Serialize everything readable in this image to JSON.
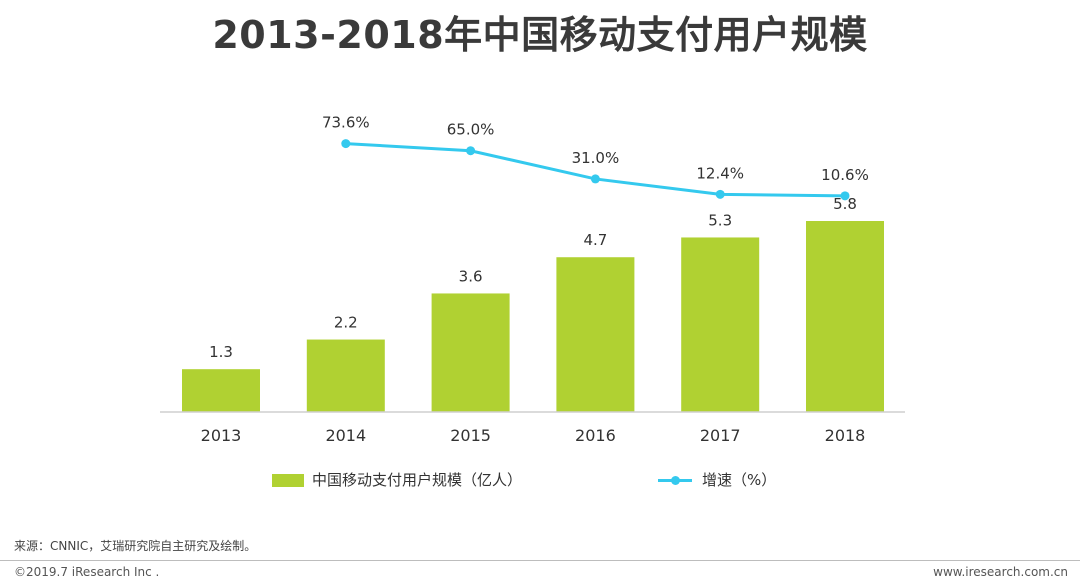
{
  "title": "2013-2018年中国移动支付用户规模",
  "chart_data": {
    "type": "bar",
    "categories": [
      "2013",
      "2014",
      "2015",
      "2016",
      "2017",
      "2018"
    ],
    "series": [
      {
        "name": "中国移动支付用户规模（亿人）",
        "type": "bar",
        "color": "#b0d132",
        "values": [
          1.3,
          2.2,
          3.6,
          4.7,
          5.3,
          5.8
        ],
        "labels": [
          "1.3",
          "2.2",
          "3.6",
          "4.7",
          "5.3",
          "5.8"
        ]
      },
      {
        "name": "增速（%）",
        "type": "line",
        "color": "#34c9ee",
        "values": [
          null,
          73.6,
          65.0,
          31.0,
          12.4,
          10.6
        ],
        "labels": [
          "",
          "73.6%",
          "65.0%",
          "31.0%",
          "12.4%",
          "10.6%"
        ]
      }
    ],
    "ylim": [
      0,
      7
    ],
    "growth_ylim": [
      -250,
      90
    ],
    "legend_position": "bottom"
  },
  "legend": {
    "bar_label": "中国移动支付用户规模（亿人）",
    "line_label": "增速（%）"
  },
  "footer": {
    "source": "来源：CNNIC，艾瑞研究院自主研究及绘制。",
    "copyright": "©2019.7 iResearch Inc .",
    "website": "www.iresearch.com.cn"
  }
}
